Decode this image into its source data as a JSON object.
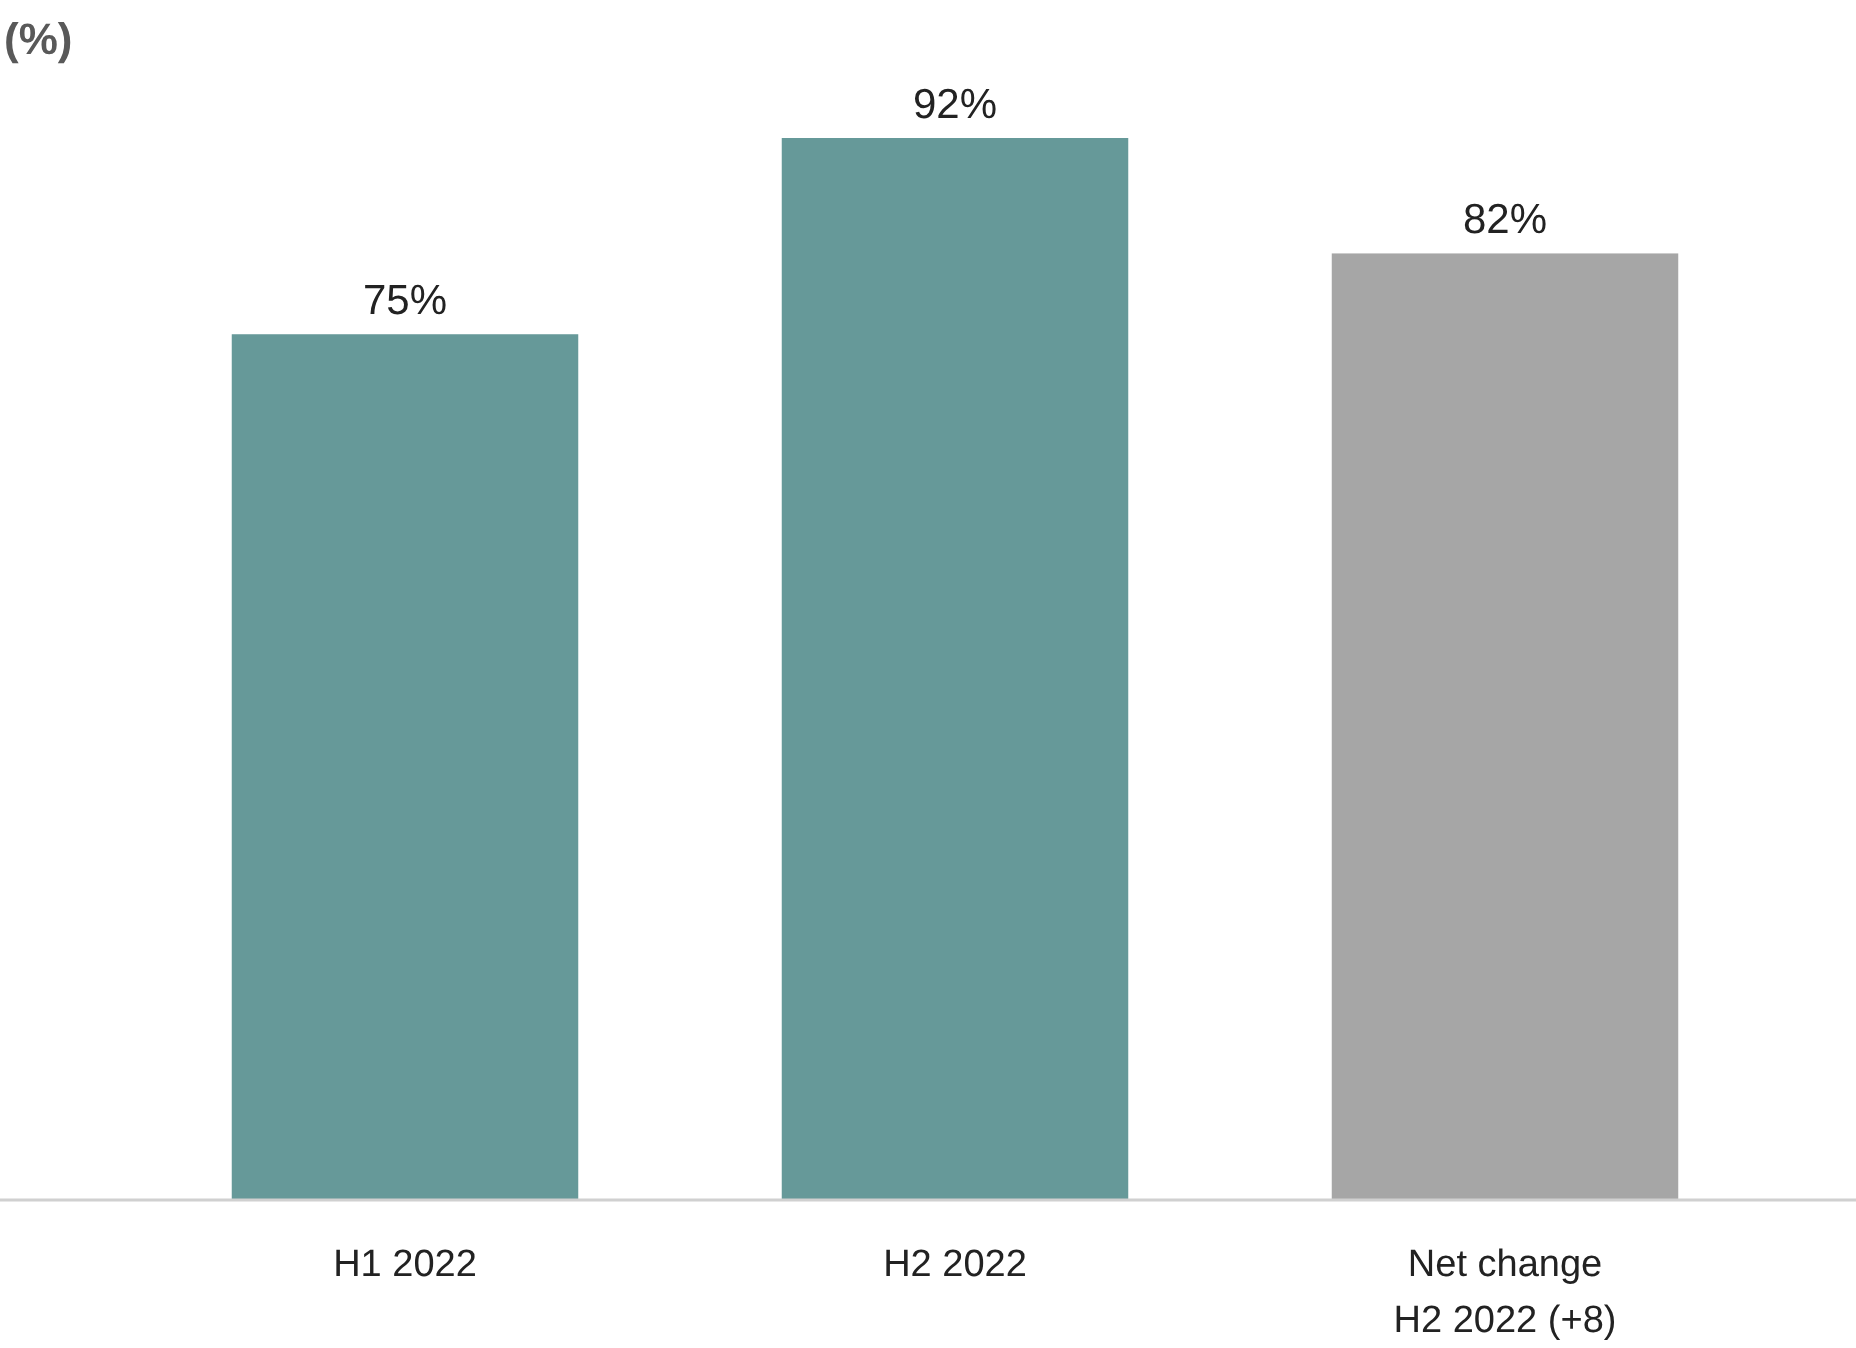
{
  "chart_data": {
    "type": "bar",
    "title": "(%)",
    "categories": [
      "H1 2022",
      "H2 2022",
      "Net change\nH2 2022 (+8)"
    ],
    "values": [
      75,
      92,
      82
    ],
    "colors": [
      "#669999",
      "#669999",
      "#a6a6a6"
    ],
    "value_labels": [
      "75%",
      "92%",
      "82%"
    ]
  }
}
